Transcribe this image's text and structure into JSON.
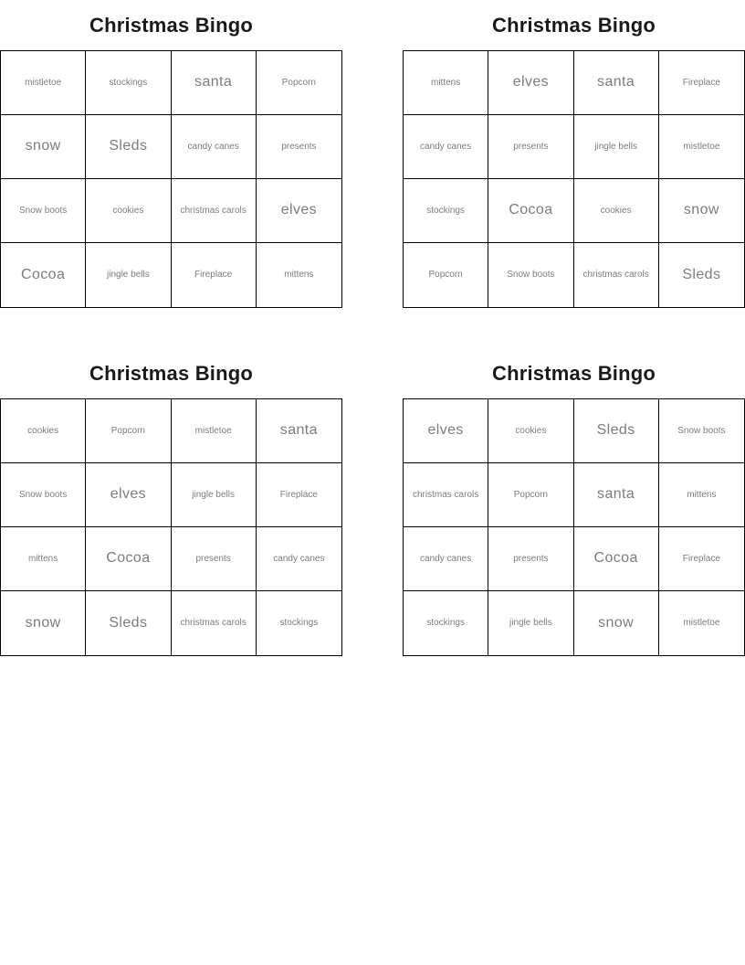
{
  "colors": {
    "background": "#ffffff",
    "title_text": "#1a1a1a",
    "cell_text": "#7c7c7c",
    "grid_border": "#000000"
  },
  "cards": [
    {
      "title": "Christmas Bingo",
      "cells": [
        {
          "text": "mistletoe",
          "size": "sm"
        },
        {
          "text": "stockings",
          "size": "sm"
        },
        {
          "text": "santa",
          "size": "lg"
        },
        {
          "text": "Popcorn",
          "size": "sm"
        },
        {
          "text": "snow",
          "size": "lg"
        },
        {
          "text": "Sleds",
          "size": "lg"
        },
        {
          "text": "candy canes",
          "size": "sm"
        },
        {
          "text": "presents",
          "size": "sm"
        },
        {
          "text": "Snow boots",
          "size": "sm"
        },
        {
          "text": "cookies",
          "size": "sm"
        },
        {
          "text": "christmas carols",
          "size": "sm"
        },
        {
          "text": "elves",
          "size": "lg"
        },
        {
          "text": "Cocoa",
          "size": "lg"
        },
        {
          "text": "jingle bells",
          "size": "sm"
        },
        {
          "text": "Fireplace",
          "size": "sm"
        },
        {
          "text": "mittens",
          "size": "sm"
        }
      ]
    },
    {
      "title": "Christmas Bingo",
      "cells": [
        {
          "text": "mittens",
          "size": "sm"
        },
        {
          "text": "elves",
          "size": "lg"
        },
        {
          "text": "santa",
          "size": "lg"
        },
        {
          "text": "Fireplace",
          "size": "sm"
        },
        {
          "text": "candy canes",
          "size": "sm"
        },
        {
          "text": "presents",
          "size": "sm"
        },
        {
          "text": "jingle bells",
          "size": "sm"
        },
        {
          "text": "mistletoe",
          "size": "sm"
        },
        {
          "text": "stockings",
          "size": "sm"
        },
        {
          "text": "Cocoa",
          "size": "lg"
        },
        {
          "text": "cookies",
          "size": "sm"
        },
        {
          "text": "snow",
          "size": "lg"
        },
        {
          "text": "Popcorn",
          "size": "sm"
        },
        {
          "text": "Snow boots",
          "size": "sm"
        },
        {
          "text": "christmas carols",
          "size": "sm"
        },
        {
          "text": "Sleds",
          "size": "lg"
        }
      ]
    },
    {
      "title": "Christmas Bingo",
      "cells": [
        {
          "text": "cookies",
          "size": "sm"
        },
        {
          "text": "Popcorn",
          "size": "sm"
        },
        {
          "text": "mistletoe",
          "size": "sm"
        },
        {
          "text": "santa",
          "size": "lg"
        },
        {
          "text": "Snow boots",
          "size": "sm"
        },
        {
          "text": "elves",
          "size": "lg"
        },
        {
          "text": "jingle bells",
          "size": "sm"
        },
        {
          "text": "Fireplace",
          "size": "sm"
        },
        {
          "text": "mittens",
          "size": "sm"
        },
        {
          "text": "Cocoa",
          "size": "lg"
        },
        {
          "text": "presents",
          "size": "sm"
        },
        {
          "text": "candy canes",
          "size": "sm"
        },
        {
          "text": "snow",
          "size": "lg"
        },
        {
          "text": "Sleds",
          "size": "lg"
        },
        {
          "text": "christmas carols",
          "size": "sm"
        },
        {
          "text": "stockings",
          "size": "sm"
        }
      ]
    },
    {
      "title": "Christmas Bingo",
      "cells": [
        {
          "text": "elves",
          "size": "lg"
        },
        {
          "text": "cookies",
          "size": "sm"
        },
        {
          "text": "Sleds",
          "size": "lg"
        },
        {
          "text": "Snow boots",
          "size": "sm"
        },
        {
          "text": "christmas carols",
          "size": "sm"
        },
        {
          "text": "Popcorn",
          "size": "sm"
        },
        {
          "text": "santa",
          "size": "lg"
        },
        {
          "text": "mittens",
          "size": "sm"
        },
        {
          "text": "candy canes",
          "size": "sm"
        },
        {
          "text": "presents",
          "size": "sm"
        },
        {
          "text": "Cocoa",
          "size": "lg"
        },
        {
          "text": "Fireplace",
          "size": "sm"
        },
        {
          "text": "stockings",
          "size": "sm"
        },
        {
          "text": "jingle bells",
          "size": "sm"
        },
        {
          "text": "snow",
          "size": "lg"
        },
        {
          "text": "mistletoe",
          "size": "sm"
        }
      ]
    }
  ]
}
